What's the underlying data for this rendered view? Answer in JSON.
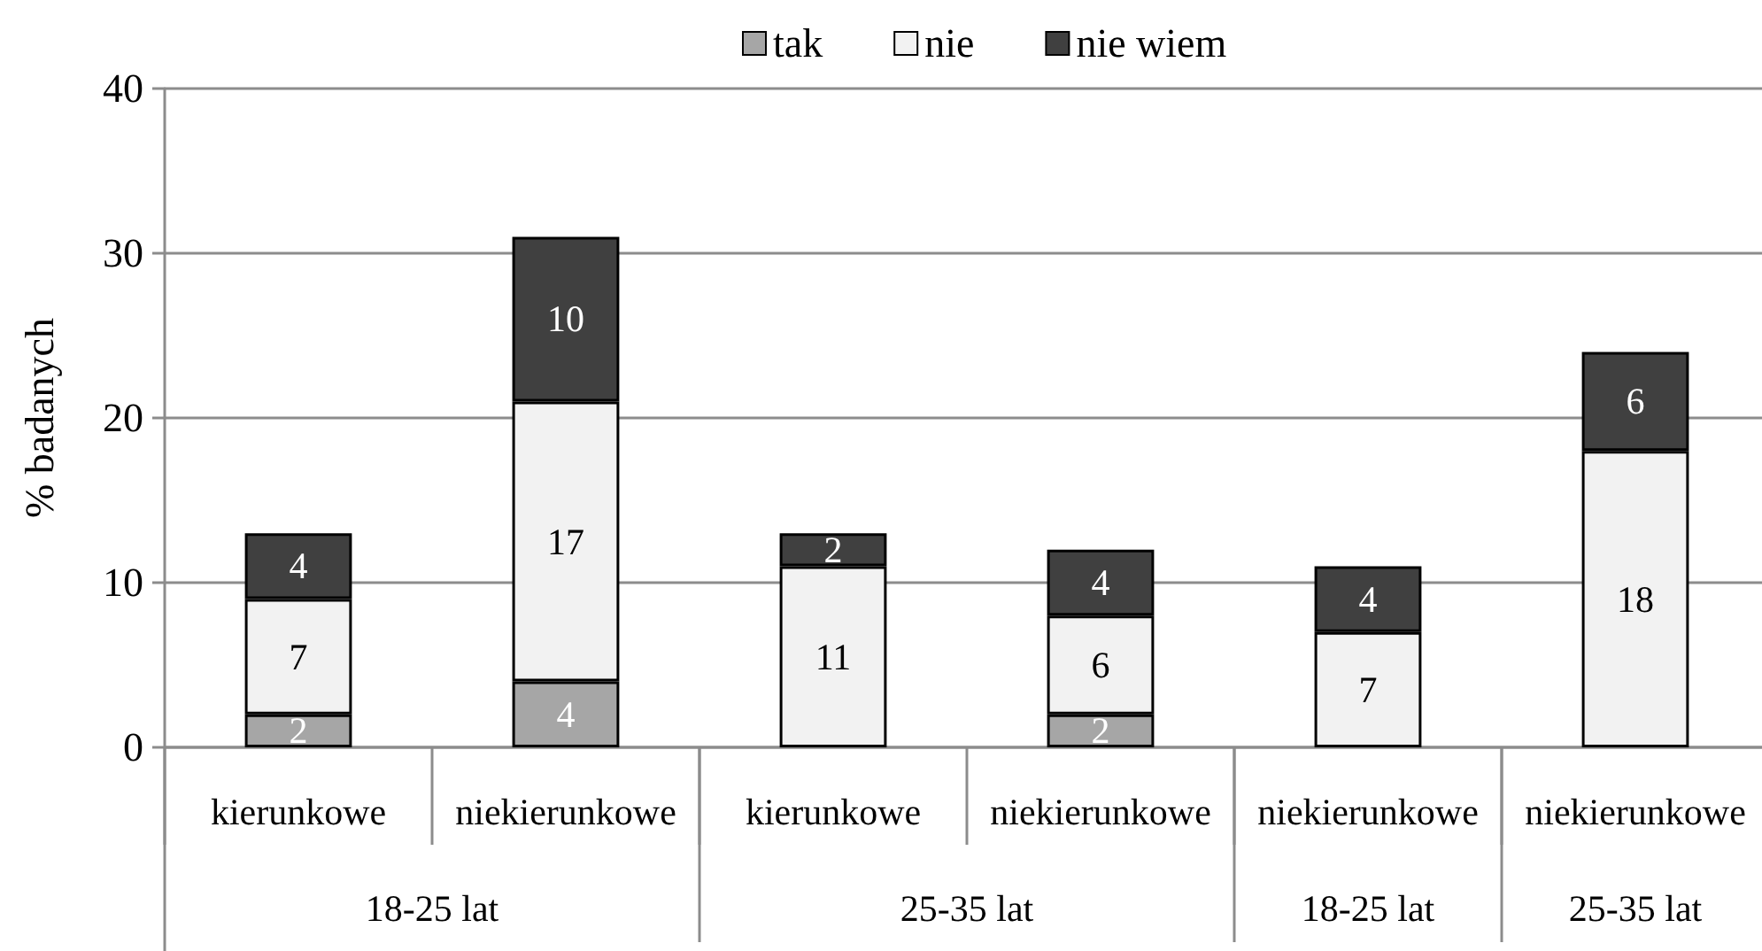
{
  "chart_data": {
    "type": "bar",
    "stacked": true,
    "categories": [
      "kierunkowe",
      "niekierunkowe",
      "kierunkowe",
      "niekierunkowe",
      "niekierunkowe",
      "niekierunkowe"
    ],
    "series": [
      {
        "name": "tak",
        "color": "#a6a6a6",
        "values": [
          2,
          4,
          null,
          2,
          null,
          null
        ]
      },
      {
        "name": "nie",
        "color": "#f2f2f2",
        "values": [
          7,
          17,
          11,
          6,
          7,
          18
        ]
      },
      {
        "name": "nie wiem",
        "color": "#404040",
        "values": [
          4,
          10,
          2,
          4,
          4,
          6
        ]
      }
    ],
    "ylabel": "% badanych",
    "ylim": [
      0,
      40
    ],
    "yticks": [
      0,
      10,
      20,
      30,
      40
    ],
    "grid": "y",
    "legend": "top",
    "data_labels": true,
    "annotations": [
      "18-25 lat",
      "25-35 lat",
      "18-25 lat",
      "25-35 lat"
    ]
  }
}
